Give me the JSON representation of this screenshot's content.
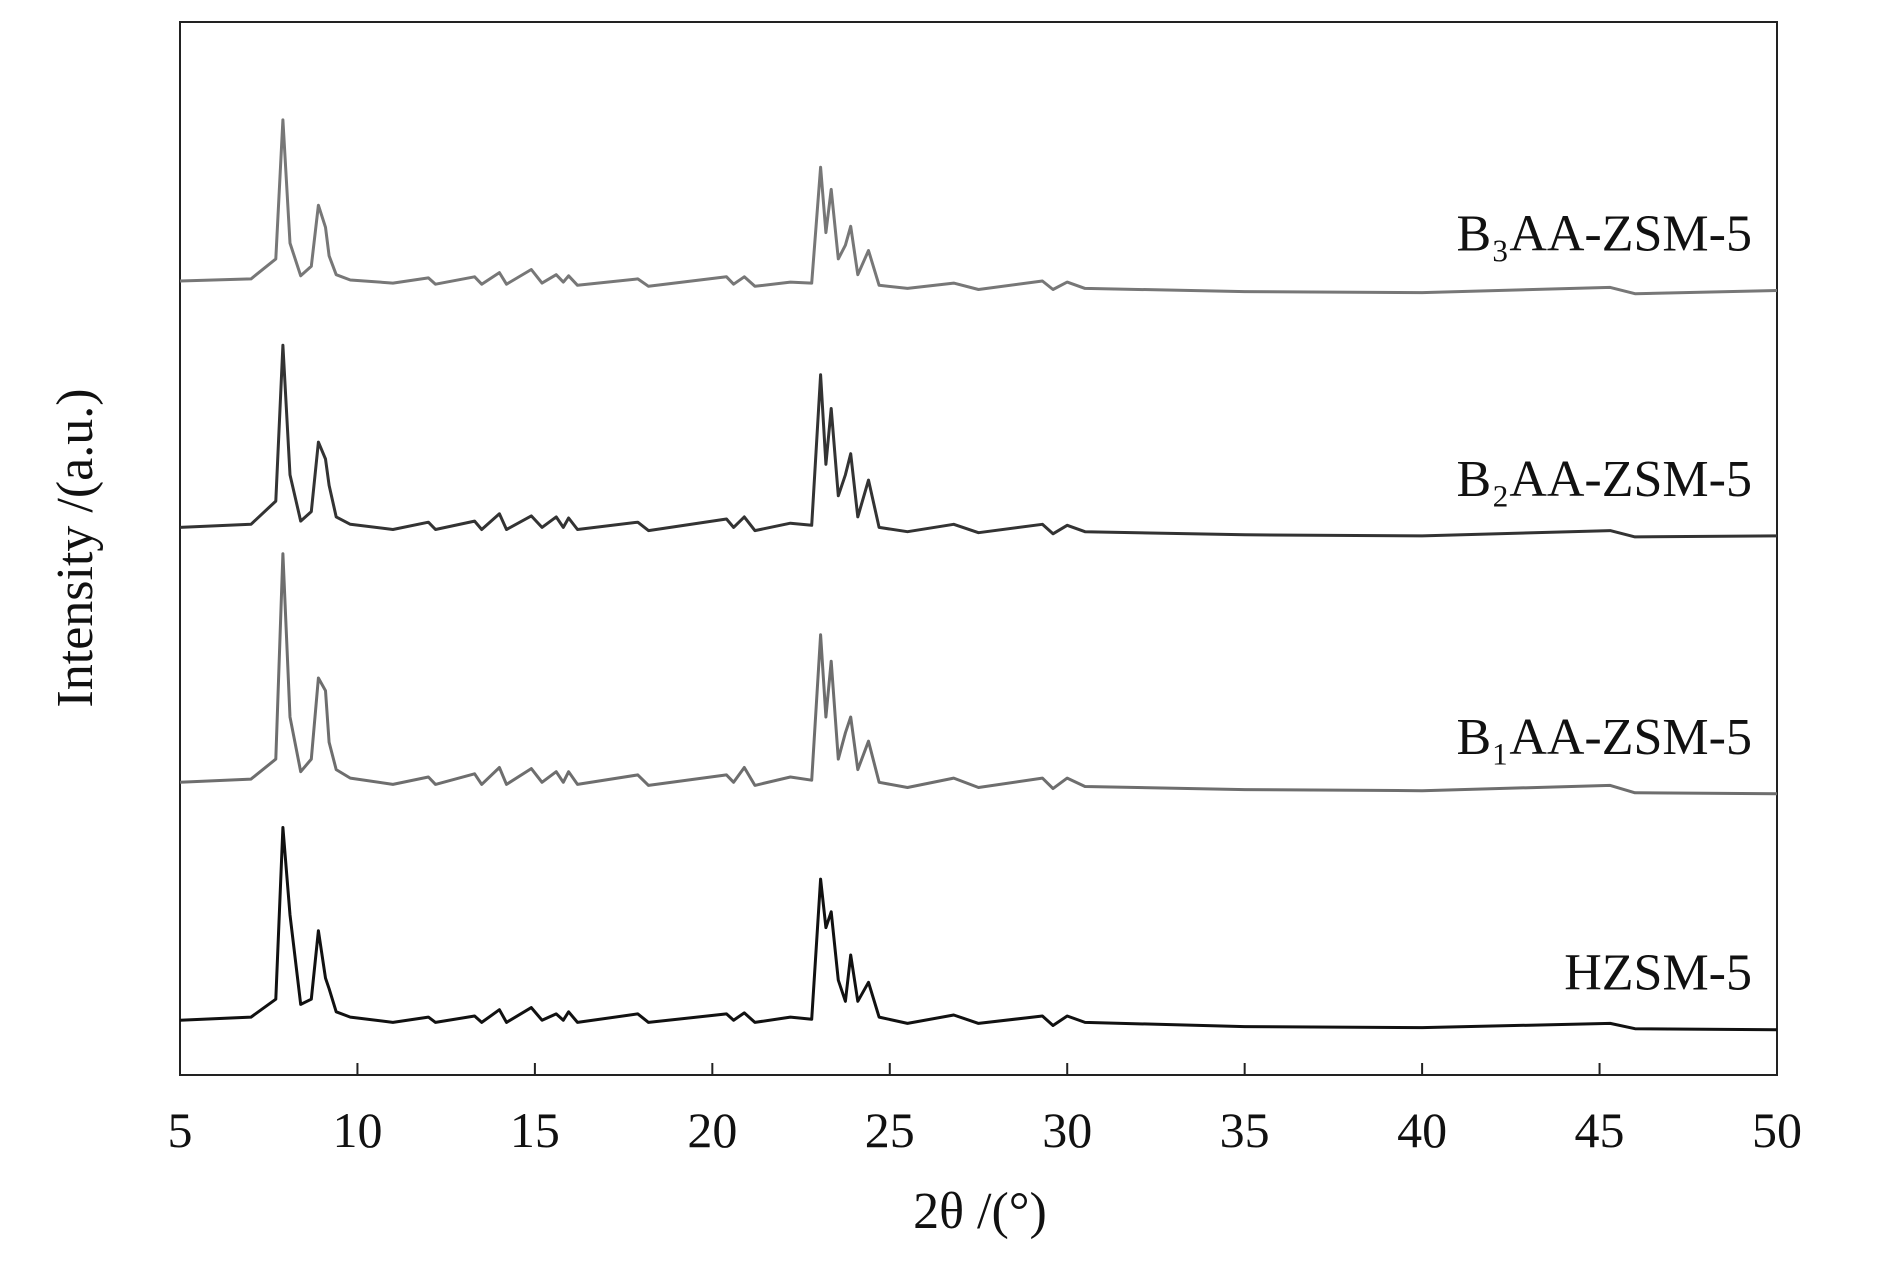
{
  "chart_data": {
    "type": "line",
    "x_label": "2θ /(°)",
    "y_label": "Intensity /(a.u.)",
    "xlim": [
      5,
      50
    ],
    "xticks": [
      5,
      10,
      15,
      20,
      25,
      30,
      35,
      40,
      45,
      50
    ],
    "ylim": [
      0,
      100
    ],
    "x": [
      5,
      7,
      7.7,
      7.9,
      8.1,
      8.4,
      8.7,
      8.9,
      9.1,
      9.2,
      9.4,
      9.8,
      11,
      12,
      12.2,
      13.3,
      13.5,
      14,
      14.2,
      14.9,
      15.2,
      15.6,
      15.8,
      15.95,
      16.2,
      17.9,
      18.2,
      20.4,
      20.6,
      20.9,
      21.2,
      22.2,
      22.8,
      23.05,
      23.2,
      23.35,
      23.55,
      23.75,
      23.9,
      24.1,
      24.4,
      24.7,
      25.5,
      26.8,
      27.5,
      29.3,
      29.6,
      30,
      30.5,
      35,
      40,
      45.3,
      46,
      50
    ],
    "series": [
      {
        "name": "HZSM-5",
        "color": "#111111",
        "values": [
          5.2,
          5.5,
          7.2,
          23.5,
          15.2,
          6.7,
          7.2,
          13.7,
          9.2,
          8.2,
          6.0,
          5.5,
          5.0,
          5.5,
          5.0,
          5.6,
          5.0,
          6.2,
          5.0,
          6.4,
          5.2,
          5.8,
          5.2,
          6.0,
          5.0,
          5.8,
          5.0,
          5.8,
          5.2,
          5.9,
          5.0,
          5.5,
          5.3,
          18.6,
          14.0,
          15.5,
          9.0,
          7.0,
          11.4,
          7.0,
          8.8,
          5.5,
          4.9,
          5.7,
          4.9,
          5.6,
          4.7,
          5.6,
          5.0,
          4.6,
          4.5,
          4.9,
          4.4,
          4.3
        ]
      },
      {
        "name": "B₁AA-ZSM-5",
        "color": "#6e6e6e",
        "values": [
          27.8,
          28.1,
          30,
          49.5,
          34,
          28.8,
          30,
          37.7,
          36.5,
          31.6,
          29,
          28.2,
          27.6,
          28.3,
          27.6,
          28.6,
          27.6,
          29.2,
          27.6,
          29.1,
          27.8,
          28.8,
          27.8,
          28.8,
          27.6,
          28.5,
          27.5,
          28.5,
          27.8,
          29.2,
          27.5,
          28.3,
          28.0,
          41.8,
          34,
          39.3,
          30,
          32.5,
          34.0,
          29,
          31.7,
          27.8,
          27.3,
          28.2,
          27.3,
          28.2,
          27.2,
          28.2,
          27.4,
          27.1,
          27.0,
          27.5,
          26.8,
          26.7
        ]
      },
      {
        "name": "B₂AA-ZSM-5",
        "color": "#333333",
        "values": [
          52.0,
          52.3,
          54.5,
          69.3,
          57,
          52.6,
          53.5,
          60.1,
          58.5,
          56.0,
          53.0,
          52.3,
          51.8,
          52.5,
          51.8,
          52.6,
          51.8,
          53.3,
          51.8,
          53.1,
          52.0,
          53.0,
          52.0,
          52.9,
          51.8,
          52.5,
          51.7,
          52.8,
          52.0,
          53.0,
          51.7,
          52.4,
          52.2,
          66.5,
          58,
          63.3,
          55,
          57,
          59.0,
          53,
          56.5,
          52.0,
          51.6,
          52.3,
          51.5,
          52.3,
          51.4,
          52.2,
          51.6,
          51.3,
          51.2,
          51.7,
          51.1,
          51.2
        ]
      },
      {
        "name": "B₃AA-ZSM-5",
        "color": "#777777",
        "values": [
          75.4,
          75.6,
          77.5,
          90.7,
          79,
          75.9,
          76.8,
          82.6,
          80.5,
          77.8,
          76.0,
          75.5,
          75.2,
          75.7,
          75.1,
          75.8,
          75.1,
          76.2,
          75.1,
          76.5,
          75.2,
          76.0,
          75.3,
          75.9,
          75.0,
          75.6,
          74.9,
          75.8,
          75.1,
          75.8,
          74.9,
          75.3,
          75.2,
          86.2,
          80,
          84.1,
          77.5,
          78.8,
          80.6,
          76,
          78.3,
          75.0,
          74.7,
          75.2,
          74.6,
          75.4,
          74.6,
          75.3,
          74.7,
          74.4,
          74.3,
          74.8,
          74.2,
          74.5
        ]
      }
    ]
  }
}
